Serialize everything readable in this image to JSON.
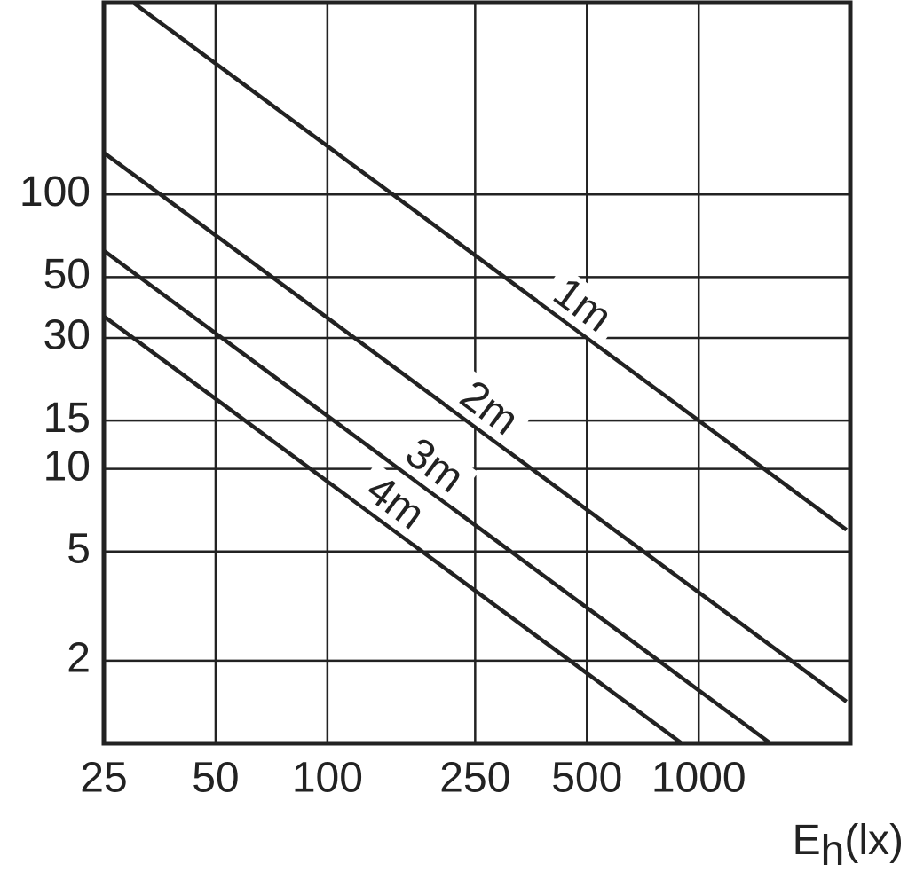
{
  "chart_data": {
    "type": "line",
    "xlabel": [
      "E",
      "h",
      "(lx)"
    ],
    "x_log": true,
    "y_log": true,
    "grid": true,
    "xlim": [
      25,
      2560
    ],
    "ylim": [
      1,
      500
    ],
    "xticks": [
      25,
      50,
      100,
      250,
      500,
      1000
    ],
    "yticks": [
      2,
      5,
      10,
      15,
      30,
      50,
      100
    ],
    "series": [
      {
        "name": "1m",
        "color": "#222222",
        "x": [
          30,
          2500
        ],
        "values": [
          500,
          6
        ]
      },
      {
        "name": "2m",
        "color": "#222222",
        "x": [
          25,
          2500
        ],
        "values": [
          142,
          1.42
        ]
      },
      {
        "name": "3m",
        "color": "#222222",
        "x": [
          25,
          1560
        ],
        "values": [
          62.4,
          1
        ]
      },
      {
        "name": "4m",
        "color": "#222222",
        "x": [
          25,
          900
        ],
        "values": [
          36,
          1
        ]
      }
    ]
  }
}
